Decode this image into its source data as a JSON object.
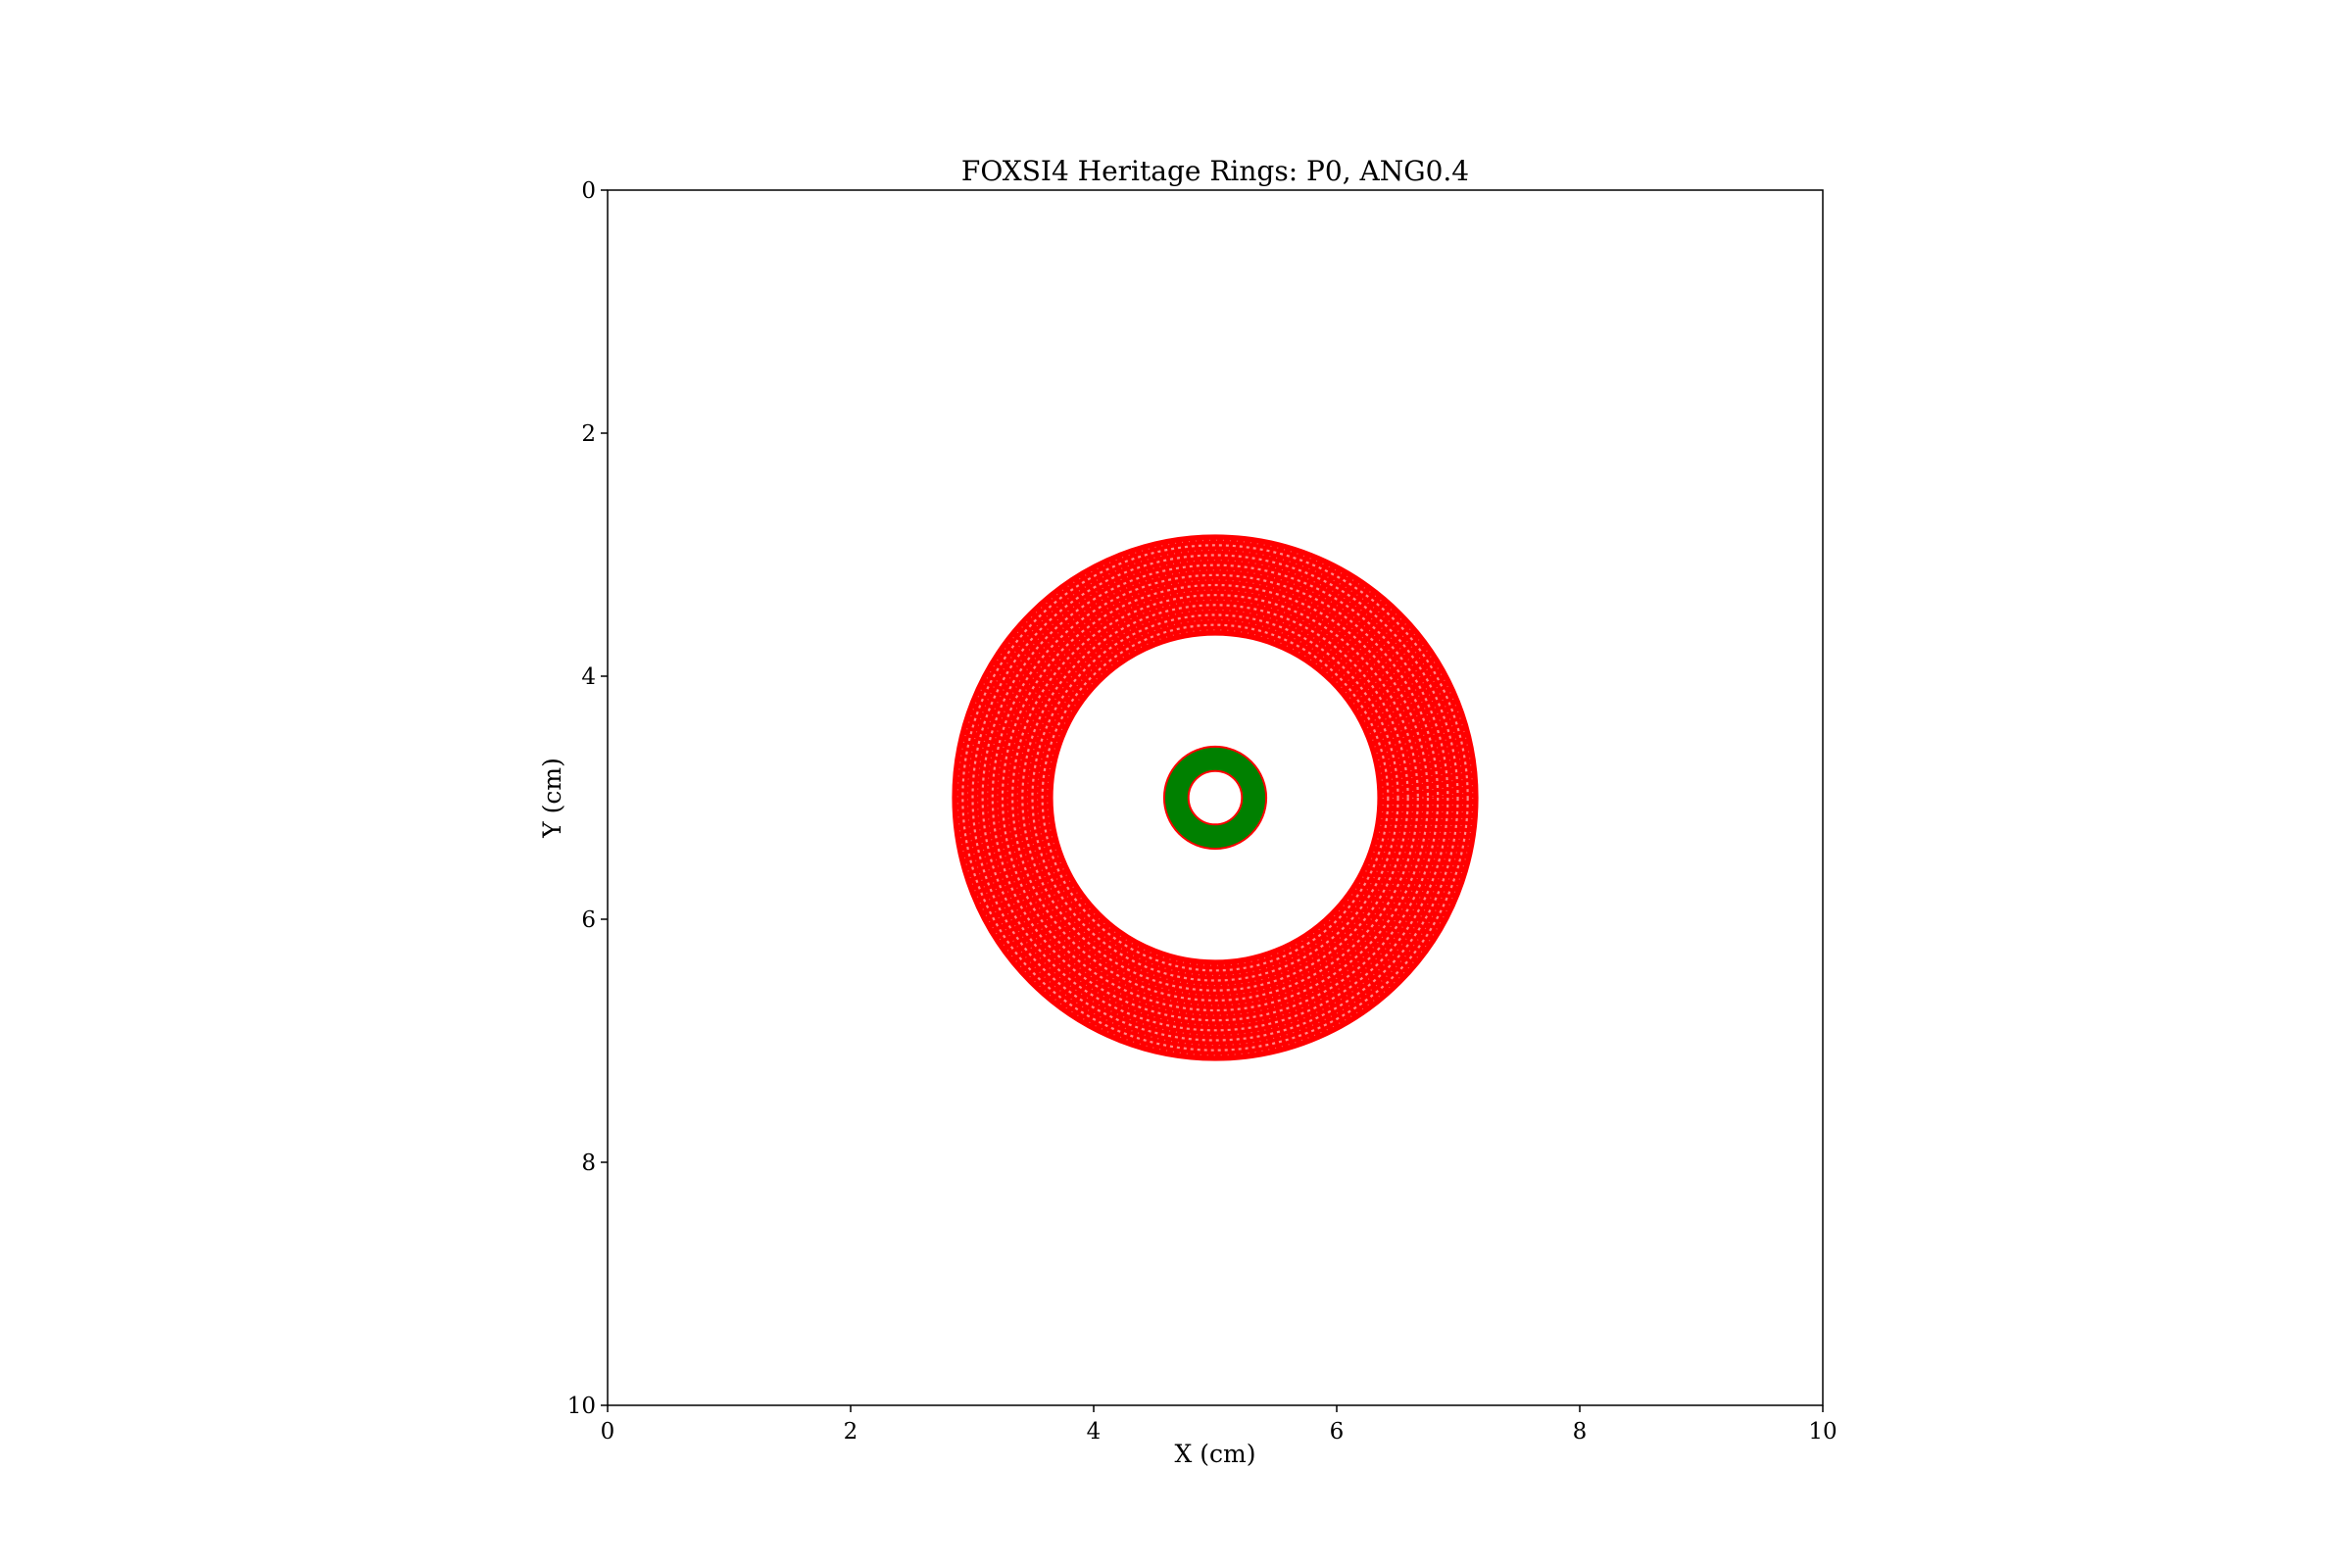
{
  "chart_data": {
    "type": "scatter",
    "title": "FOXSI4 Heritage Rings: P0, ANG0.4",
    "xlabel": "X (cm)",
    "ylabel": "Y (cm)",
    "xlim": [
      0,
      10
    ],
    "ylim": [
      10,
      0
    ],
    "y_inverted": true,
    "grid": false,
    "xticks": [
      0,
      2,
      4,
      6,
      8,
      10
    ],
    "yticks": [
      0,
      2,
      4,
      6,
      8,
      10
    ],
    "xtick_labels": [
      "0",
      "2",
      "4",
      "6",
      "8",
      "10"
    ],
    "ytick_labels": [
      "0",
      "2",
      "4",
      "6",
      "8",
      "10"
    ],
    "series": [
      {
        "name": "outer shell rings",
        "kind": "annulus-scatter",
        "center": [
          5.0,
          5.0
        ],
        "inner_radius": 1.34,
        "outer_radius": 2.16,
        "ring_count": 10,
        "color": "#ff0000"
      },
      {
        "name": "inner heritage ring",
        "kind": "filled-annulus",
        "center": [
          5.0,
          5.0
        ],
        "inner_radius": 0.22,
        "outer_radius": 0.42,
        "fill_color": "#008000",
        "edge_color": "#ff0000"
      }
    ]
  }
}
